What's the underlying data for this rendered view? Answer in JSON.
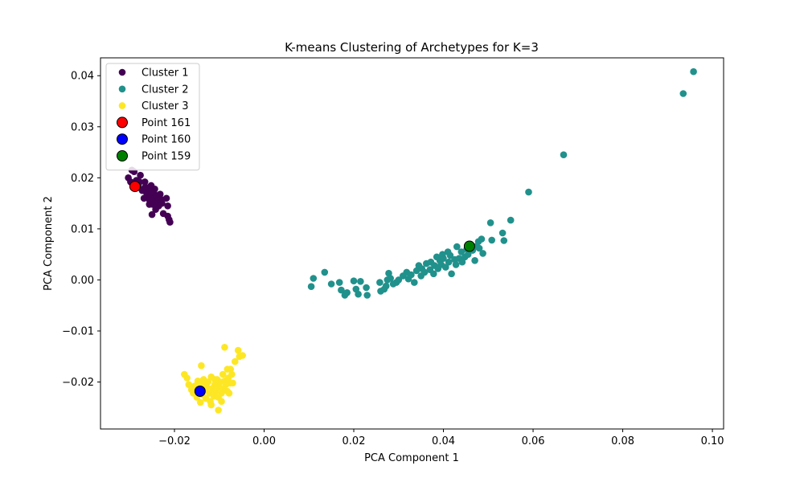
{
  "chart_data": {
    "type": "scatter",
    "title": "K-means Clustering of Archetypes for K=3",
    "xlabel": "PCA Component 1",
    "ylabel": "PCA Component 2",
    "xlim": [
      -0.0365,
      0.1025
    ],
    "ylim": [
      -0.0292,
      0.0435
    ],
    "xticks": [
      -0.02,
      0.0,
      0.02,
      0.04,
      0.06,
      0.08,
      0.1
    ],
    "xtick_labels": [
      "−0.02",
      "0.00",
      "0.02",
      "0.04",
      "0.06",
      "0.08",
      "0.10"
    ],
    "yticks": [
      -0.02,
      -0.01,
      0.0,
      0.01,
      0.02,
      0.03,
      0.04
    ],
    "ytick_labels": [
      "−0.02",
      "−0.01",
      "0.00",
      "0.01",
      "0.02",
      "0.03",
      "0.04"
    ],
    "grid": false,
    "legend_position": "top-left",
    "series": [
      {
        "name": "Cluster 1",
        "color": "#440154",
        "points": [
          [
            -0.0303,
            0.02
          ],
          [
            -0.0295,
            0.0215
          ],
          [
            -0.029,
            0.0212
          ],
          [
            -0.0285,
            0.0195
          ],
          [
            -0.028,
            0.0188
          ],
          [
            -0.0276,
            0.0205
          ],
          [
            -0.0272,
            0.0175
          ],
          [
            -0.0268,
            0.016
          ],
          [
            -0.0265,
            0.0182
          ],
          [
            -0.0262,
            0.017
          ],
          [
            -0.0258,
            0.0165
          ],
          [
            -0.0255,
            0.0155
          ],
          [
            -0.0252,
            0.0185
          ],
          [
            -0.025,
            0.0172
          ],
          [
            -0.0248,
            0.0148
          ],
          [
            -0.0245,
            0.016
          ],
          [
            -0.0242,
            0.0138
          ],
          [
            -0.024,
            0.0165
          ],
          [
            -0.0238,
            0.0152
          ],
          [
            -0.0235,
            0.0145
          ],
          [
            -0.0232,
            0.0168
          ],
          [
            -0.023,
            0.0158
          ],
          [
            -0.0228,
            0.015
          ],
          [
            -0.025,
            0.0128
          ],
          [
            -0.0225,
            0.013
          ],
          [
            -0.0215,
            0.0125
          ],
          [
            -0.0212,
            0.0118
          ],
          [
            -0.021,
            0.0113
          ],
          [
            -0.0215,
            0.0145
          ],
          [
            -0.0218,
            0.016
          ],
          [
            -0.0278,
            0.0192
          ],
          [
            -0.0288,
            0.0185
          ],
          [
            -0.0298,
            0.0192
          ],
          [
            -0.027,
            0.0178
          ],
          [
            -0.026,
            0.0178
          ],
          [
            -0.0246,
            0.017
          ],
          [
            -0.0236,
            0.0158
          ],
          [
            -0.0266,
            0.0192
          ],
          [
            -0.0256,
            0.0148
          ],
          [
            -0.0244,
            0.0178
          ]
        ]
      },
      {
        "name": "Cluster 2",
        "color": "#21918c",
        "points": [
          [
            0.0105,
            -0.0013
          ],
          [
            0.011,
            0.0003
          ],
          [
            0.0135,
            0.0015
          ],
          [
            0.015,
            -0.0008
          ],
          [
            0.0168,
            -0.0005
          ],
          [
            0.0172,
            -0.002
          ],
          [
            0.018,
            -0.003
          ],
          [
            0.0185,
            -0.0025
          ],
          [
            0.02,
            -0.0002
          ],
          [
            0.0205,
            -0.0018
          ],
          [
            0.021,
            -0.0028
          ],
          [
            0.0215,
            -0.0003
          ],
          [
            0.0228,
            -0.0015
          ],
          [
            0.023,
            -0.003
          ],
          [
            0.0258,
            -0.0005
          ],
          [
            0.026,
            -0.0022
          ],
          [
            0.0268,
            -0.0018
          ],
          [
            0.0272,
            -0.0012
          ],
          [
            0.0275,
            0.0
          ],
          [
            0.0278,
            0.0013
          ],
          [
            0.0282,
            0.0003
          ],
          [
            0.0288,
            -0.0008
          ],
          [
            0.0295,
            -0.0005
          ],
          [
            0.03,
            0.0
          ],
          [
            0.031,
            0.0008
          ],
          [
            0.0318,
            0.0015
          ],
          [
            0.0322,
            0.0002
          ],
          [
            0.0328,
            0.001
          ],
          [
            0.0335,
            -0.0005
          ],
          [
            0.034,
            0.0018
          ],
          [
            0.0345,
            0.0028
          ],
          [
            0.035,
            0.0008
          ],
          [
            0.0352,
            0.0022
          ],
          [
            0.0358,
            0.0015
          ],
          [
            0.0362,
            0.0032
          ],
          [
            0.037,
            0.002
          ],
          [
            0.0372,
            0.0035
          ],
          [
            0.0378,
            0.0012
          ],
          [
            0.038,
            0.0028
          ],
          [
            0.0385,
            0.0045
          ],
          [
            0.0388,
            0.0022
          ],
          [
            0.0392,
            0.0038
          ],
          [
            0.0395,
            0.003
          ],
          [
            0.0398,
            0.005
          ],
          [
            0.04,
            0.0042
          ],
          [
            0.0405,
            0.0025
          ],
          [
            0.041,
            0.0055
          ],
          [
            0.0412,
            0.0035
          ],
          [
            0.0415,
            0.0048
          ],
          [
            0.0418,
            0.0012
          ],
          [
            0.0425,
            0.004
          ],
          [
            0.0428,
            0.003
          ],
          [
            0.043,
            0.0065
          ],
          [
            0.0435,
            0.0042
          ],
          [
            0.044,
            0.0055
          ],
          [
            0.0442,
            0.0035
          ],
          [
            0.0448,
            0.0045
          ],
          [
            0.0452,
            0.006
          ],
          [
            0.0455,
            0.005
          ],
          [
            0.046,
            0.007
          ],
          [
            0.0465,
            0.0058
          ],
          [
            0.047,
            0.0038
          ],
          [
            0.0472,
            0.0065
          ],
          [
            0.0478,
            0.0075
          ],
          [
            0.048,
            0.0062
          ],
          [
            0.0485,
            0.008
          ],
          [
            0.0488,
            0.0052
          ],
          [
            0.0505,
            0.0112
          ],
          [
            0.0508,
            0.0078
          ],
          [
            0.0532,
            0.0092
          ],
          [
            0.0535,
            0.0077
          ],
          [
            0.055,
            0.0117
          ],
          [
            0.059,
            0.0172
          ],
          [
            0.0668,
            0.0245
          ],
          [
            0.0935,
            0.0365
          ],
          [
            0.0958,
            0.0408
          ]
        ]
      },
      {
        "name": "Cluster 3",
        "color": "#fde725",
        "points": [
          [
            -0.0178,
            -0.0185
          ],
          [
            -0.0172,
            -0.0192
          ],
          [
            -0.0168,
            -0.0205
          ],
          [
            -0.0162,
            -0.0215
          ],
          [
            -0.0158,
            -0.0222
          ],
          [
            -0.0155,
            -0.0208
          ],
          [
            -0.015,
            -0.023
          ],
          [
            -0.0148,
            -0.0198
          ],
          [
            -0.0145,
            -0.0218
          ],
          [
            -0.0142,
            -0.024
          ],
          [
            -0.014,
            -0.0205
          ],
          [
            -0.0138,
            -0.0225
          ],
          [
            -0.0135,
            -0.0195
          ],
          [
            -0.0132,
            -0.0215
          ],
          [
            -0.013,
            -0.0232
          ],
          [
            -0.0128,
            -0.021
          ],
          [
            -0.0125,
            -0.02
          ],
          [
            -0.0122,
            -0.0222
          ],
          [
            -0.012,
            -0.0238
          ],
          [
            -0.0118,
            -0.019
          ],
          [
            -0.0115,
            -0.0212
          ],
          [
            -0.0112,
            -0.0228
          ],
          [
            -0.011,
            -0.0205
          ],
          [
            -0.0108,
            -0.0218
          ],
          [
            -0.0105,
            -0.0195
          ],
          [
            -0.0102,
            -0.023
          ],
          [
            -0.01,
            -0.021
          ],
          [
            -0.0098,
            -0.02
          ],
          [
            -0.0095,
            -0.0222
          ],
          [
            -0.0092,
            -0.0185
          ],
          [
            -0.009,
            -0.0212
          ],
          [
            -0.0088,
            -0.0198
          ],
          [
            -0.0085,
            -0.0205
          ],
          [
            -0.0082,
            -0.0218
          ],
          [
            -0.008,
            -0.0192
          ],
          [
            -0.0078,
            -0.0222
          ],
          [
            -0.0075,
            -0.0202
          ],
          [
            -0.0072,
            -0.0185
          ],
          [
            -0.0065,
            -0.016
          ],
          [
            -0.0058,
            -0.0138
          ],
          [
            -0.0055,
            -0.015
          ],
          [
            -0.0048,
            -0.0148
          ],
          [
            -0.0082,
            -0.0175
          ],
          [
            -0.0075,
            -0.0175
          ],
          [
            -0.0088,
            -0.0132
          ],
          [
            -0.014,
            -0.0168
          ],
          [
            -0.0102,
            -0.0255
          ],
          [
            -0.0118,
            -0.0245
          ],
          [
            -0.007,
            -0.0202
          ],
          [
            -0.013,
            -0.0202
          ],
          [
            -0.011,
            -0.0195
          ],
          [
            -0.0095,
            -0.0238
          ]
        ]
      }
    ],
    "highlight_points": [
      {
        "name": "Point 161",
        "color": "#ff0000",
        "x": -0.0288,
        "y": 0.0183
      },
      {
        "name": "Point 160",
        "color": "#0000ff",
        "x": -0.0143,
        "y": -0.0218
      },
      {
        "name": "Point 159",
        "color": "#008000",
        "x": 0.0458,
        "y": 0.0066
      }
    ]
  }
}
